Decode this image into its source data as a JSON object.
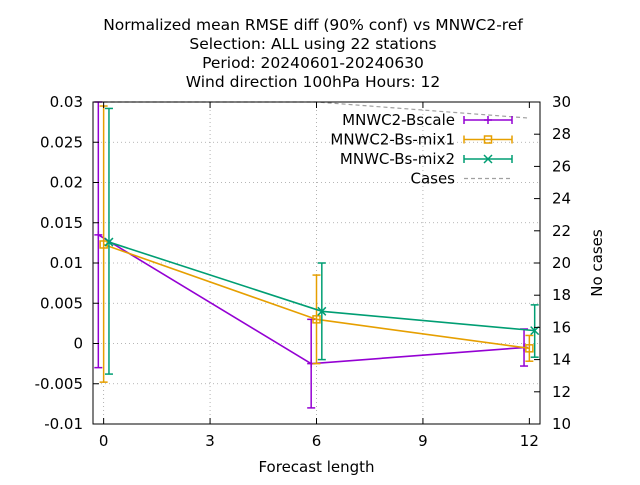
{
  "chart_data": {
    "type": "line",
    "title_lines": [
      "Normalized mean RMSE diff (90% conf) vs MNWC2-ref",
      "Selection: ALL using    22 stations",
      "Period: 20240601-20240630",
      "Wind direction 100hPa   Hours: 12"
    ],
    "xlabel": "Forecast length",
    "ylabel": "",
    "y2label": "No cases",
    "xlim": [
      -0.3,
      12.3
    ],
    "ylim": [
      -0.01,
      0.03
    ],
    "y2lim": [
      10,
      30
    ],
    "xticks": [
      0,
      3,
      6,
      9,
      12
    ],
    "xtick_labels": [
      "0",
      "3",
      "6",
      "9",
      "12"
    ],
    "yticks": [
      -0.01,
      -0.005,
      0,
      0.005,
      0.01,
      0.015,
      0.02,
      0.025,
      0.03
    ],
    "ytick_labels": [
      "-0.01",
      "-0.005",
      "0",
      "0.005",
      "0.01",
      "0.015",
      "0.02",
      "0.025",
      "0.03"
    ],
    "y2ticks": [
      10,
      12,
      14,
      16,
      18,
      20,
      22,
      24,
      26,
      28,
      30
    ],
    "y2tick_labels": [
      "10",
      "12",
      "14",
      "16",
      "18",
      "20",
      "22",
      "24",
      "26",
      "28",
      "30"
    ],
    "grid": true,
    "legend_position": "top-right",
    "series": [
      {
        "name": "MNWC2-Bscale",
        "color": "#9400d3",
        "marker": "plus",
        "x": [
          -0.15,
          5.85,
          11.85
        ],
        "y": [
          0.0135,
          -0.0025,
          -0.0005
        ],
        "err_low": [
          -0.003,
          -0.008,
          -0.0028
        ],
        "err_high": [
          0.03,
          0.003,
          0.0018
        ]
      },
      {
        "name": "MNWC2-Bs-mix1",
        "color": "#e69f00",
        "marker": "square",
        "x": [
          0.0,
          6.0,
          12.0
        ],
        "y": [
          0.0123,
          0.003,
          -0.0006
        ],
        "err_low": [
          -0.0048,
          -0.0025,
          -0.0022
        ],
        "err_high": [
          0.0295,
          0.0085,
          0.001
        ]
      },
      {
        "name": "MNWC-Bs-mix2",
        "color": "#009e73",
        "marker": "x",
        "x": [
          0.15,
          6.15,
          12.15
        ],
        "y": [
          0.0126,
          0.004,
          0.0016
        ],
        "err_low": [
          -0.0038,
          -0.002,
          -0.0017
        ],
        "err_high": [
          0.0292,
          0.01,
          0.0048
        ]
      },
      {
        "name": "Cases",
        "color": "#a0a0a0",
        "axis": "y2",
        "dashed": true,
        "x": [
          0,
          6,
          12
        ],
        "y": [
          30,
          30,
          29
        ]
      }
    ]
  }
}
